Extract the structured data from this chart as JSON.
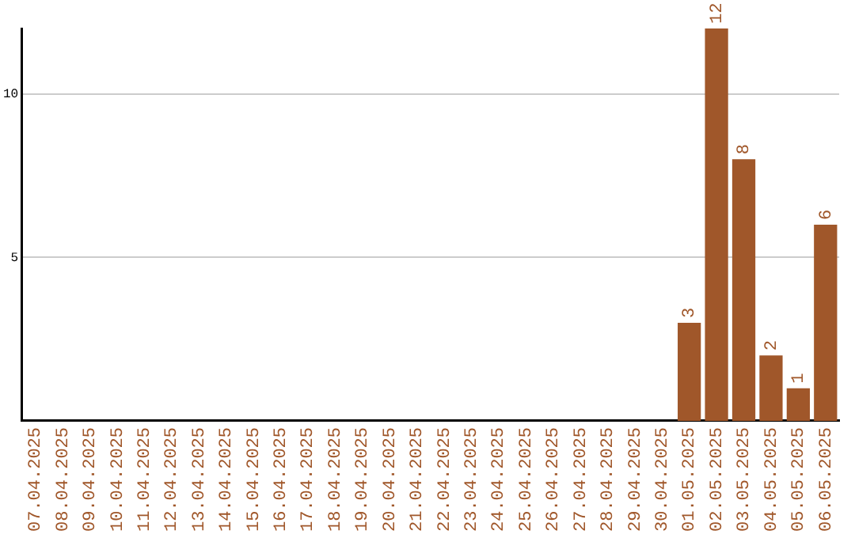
{
  "chart_data": {
    "type": "bar",
    "categories": [
      "07.04.2025",
      "08.04.2025",
      "09.04.2025",
      "10.04.2025",
      "11.04.2025",
      "12.04.2025",
      "13.04.2025",
      "14.04.2025",
      "15.04.2025",
      "16.04.2025",
      "17.04.2025",
      "18.04.2025",
      "19.04.2025",
      "20.04.2025",
      "21.04.2025",
      "22.04.2025",
      "23.04.2025",
      "24.04.2025",
      "25.04.2025",
      "26.04.2025",
      "27.04.2025",
      "28.04.2025",
      "29.04.2025",
      "30.04.2025",
      "01.05.2025",
      "02.05.2025",
      "03.05.2025",
      "04.05.2025",
      "05.05.2025",
      "06.05.2025"
    ],
    "values": [
      0,
      0,
      0,
      0,
      0,
      0,
      0,
      0,
      0,
      0,
      0,
      0,
      0,
      0,
      0,
      0,
      0,
      0,
      0,
      0,
      0,
      0,
      0,
      0,
      3,
      12,
      8,
      2,
      1,
      6
    ],
    "value_labels": [
      null,
      null,
      null,
      null,
      null,
      null,
      null,
      null,
      null,
      null,
      null,
      null,
      null,
      null,
      null,
      null,
      null,
      null,
      null,
      null,
      null,
      null,
      null,
      null,
      "3",
      "12",
      "8",
      "2",
      "1",
      "6"
    ],
    "color": "#a0572a",
    "ylim": [
      0,
      12
    ],
    "yticks": [
      5,
      10
    ],
    "grid": "y"
  }
}
